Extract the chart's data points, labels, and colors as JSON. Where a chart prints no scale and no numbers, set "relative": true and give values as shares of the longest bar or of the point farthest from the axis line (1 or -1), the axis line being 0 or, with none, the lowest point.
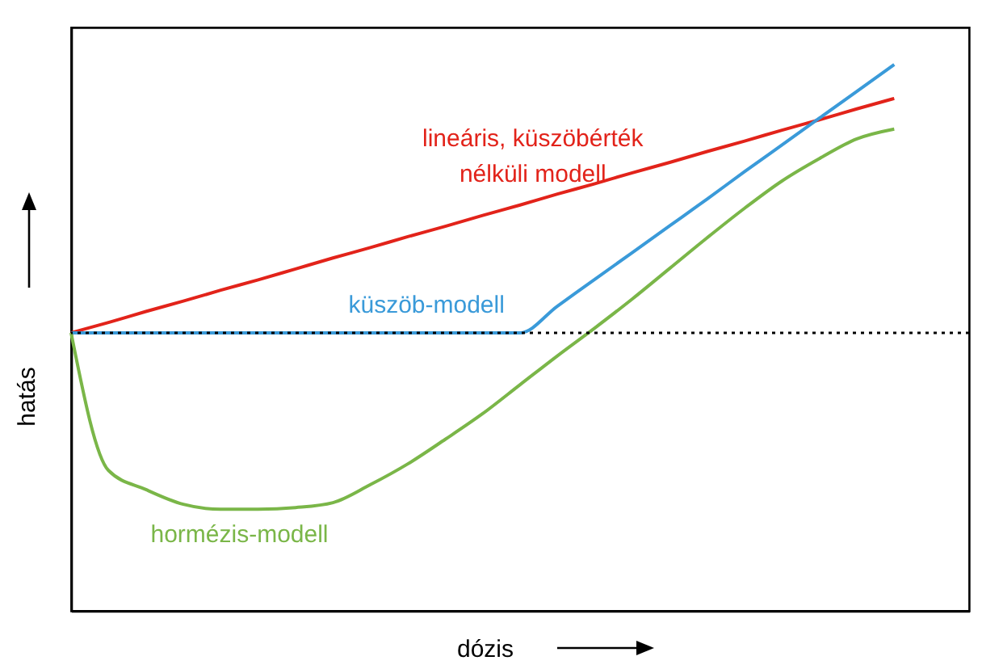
{
  "chart_data": {
    "type": "line",
    "xlabel": "dózis",
    "ylabel": "hatás",
    "relative": true,
    "grid": false,
    "marker": "none",
    "line_style": "solid",
    "categories": [
      null,
      null,
      null,
      null,
      null,
      null,
      null,
      null,
      null,
      null,
      null,
      null,
      null,
      null,
      null,
      null,
      null,
      null,
      null,
      null,
      null,
      null,
      null,
      null,
      null
    ],
    "series": [
      {
        "name": "lineáris, küszöbérték nélküli modell",
        "color": "#e2231a",
        "values": [
          0.509,
          0.528,
          0.548,
          0.567,
          0.587,
          0.606,
          0.626,
          0.646,
          0.665,
          0.685,
          0.704,
          0.724,
          0.743,
          0.763,
          0.782,
          0.802,
          0.821,
          0.841,
          0.86,
          0.88,
          0.899,
          0.919,
          0.938,
          null,
          null
        ]
      },
      {
        "name": "küszöb-modell",
        "color": "#3a9ad9",
        "values": [
          0.509,
          0.509,
          0.509,
          0.509,
          0.509,
          0.509,
          0.509,
          0.509,
          0.509,
          0.509,
          0.509,
          0.509,
          0.509,
          0.558,
          0.607,
          0.656,
          0.705,
          0.754,
          0.804,
          0.853,
          0.902,
          0.951,
          1.0,
          null,
          null
        ]
      },
      {
        "name": "hormézis-modell",
        "color": "#7ab648",
        "values": [
          0.509,
          0.257,
          0.222,
          0.195,
          0.186,
          0.186,
          0.189,
          0.198,
          0.231,
          0.269,
          0.314,
          0.361,
          0.414,
          0.467,
          0.518,
          0.571,
          0.627,
          0.683,
          0.737,
          0.787,
          0.828,
          0.864,
          0.882,
          null,
          null
        ]
      }
    ],
    "ref_lines": [
      {
        "axis": "y",
        "value": 0.509,
        "color": "#000000",
        "line_style": "dotted"
      }
    ]
  }
}
